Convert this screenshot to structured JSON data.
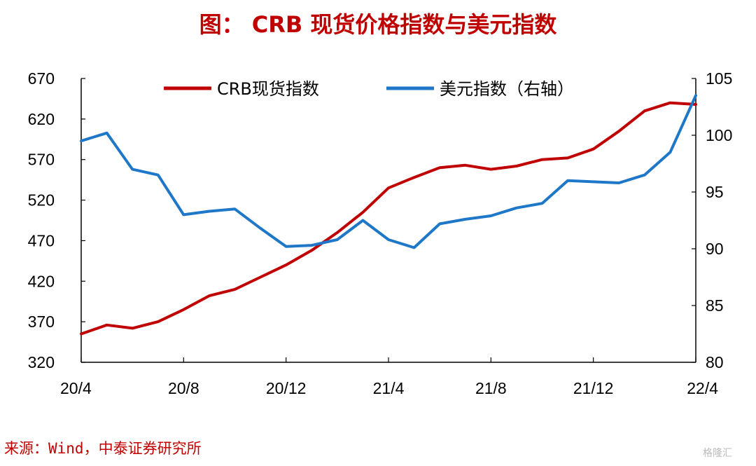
{
  "title": "图： CRB 现货价格指数与美元指数",
  "source": "来源：Wind，中泰证券研究所",
  "watermark": "格隆汇",
  "colors": {
    "crb": "#c00000",
    "dxy": "#1f77c8",
    "title": "#c00000"
  },
  "chart_data": {
    "type": "line",
    "title": "图： CRB 现货价格指数与美元指数",
    "x_tick_labels": [
      "20/4",
      "20/8",
      "20/12",
      "21/4",
      "21/8",
      "21/12",
      "22/4"
    ],
    "x_range": [
      "2020-04",
      "2022-04"
    ],
    "y_left": {
      "ticks": [
        "320",
        "370",
        "420",
        "470",
        "520",
        "570",
        "620",
        "670"
      ],
      "range": [
        320,
        670
      ]
    },
    "y_right": {
      "ticks": [
        "80",
        "85",
        "90",
        "95",
        "100",
        "105"
      ],
      "range": [
        80,
        105
      ]
    },
    "legend": {
      "position": "top-center",
      "entries": [
        "CRB现货指数",
        "美元指数（右轴）"
      ]
    },
    "grid": false,
    "series": [
      {
        "name": "CRB现货指数",
        "axis": "left",
        "x": [
          "2020-04",
          "2020-05",
          "2020-06",
          "2020-07",
          "2020-08",
          "2020-09",
          "2020-10",
          "2020-11",
          "2020-12",
          "2021-01",
          "2021-02",
          "2021-03",
          "2021-04",
          "2021-05",
          "2021-06",
          "2021-07",
          "2021-08",
          "2021-09",
          "2021-10",
          "2021-11",
          "2021-12",
          "2022-01",
          "2022-02",
          "2022-03",
          "2022-04"
        ],
        "values": [
          355,
          366,
          362,
          370,
          385,
          402,
          410,
          425,
          440,
          458,
          480,
          505,
          535,
          548,
          560,
          563,
          558,
          562,
          570,
          572,
          583,
          605,
          630,
          640,
          638
        ]
      },
      {
        "name": "美元指数（右轴）",
        "axis": "right",
        "x": [
          "2020-04",
          "2020-05",
          "2020-06",
          "2020-07",
          "2020-08",
          "2020-09",
          "2020-10",
          "2020-11",
          "2020-12",
          "2021-01",
          "2021-02",
          "2021-03",
          "2021-04",
          "2021-05",
          "2021-06",
          "2021-07",
          "2021-08",
          "2021-09",
          "2021-10",
          "2021-11",
          "2021-12",
          "2022-01",
          "2022-02",
          "2022-03",
          "2022-04"
        ],
        "values": [
          99.5,
          100.2,
          97.0,
          96.5,
          93.0,
          93.3,
          93.5,
          91.8,
          90.2,
          90.3,
          90.8,
          92.5,
          90.8,
          90.1,
          92.2,
          92.6,
          92.9,
          93.6,
          94.0,
          96.0,
          95.9,
          95.8,
          96.5,
          98.5,
          103.5
        ]
      }
    ]
  }
}
